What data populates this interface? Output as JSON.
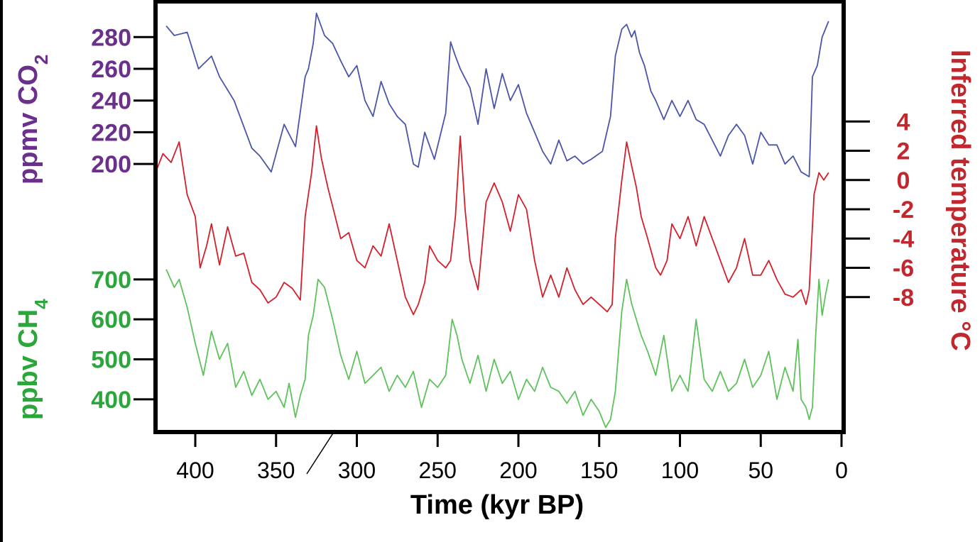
{
  "chart_data": {
    "type": "line",
    "xlabel": "Time (kyr BP)",
    "xlim": [
      425,
      0
    ],
    "x_ticks": [
      "400",
      "350",
      "300",
      "250",
      "200",
      "150",
      "100",
      "50",
      "0"
    ],
    "axes": {
      "co2": {
        "label_main": "ppmv CO",
        "label_sub": "2",
        "ticks": [
          "280",
          "260",
          "240",
          "220",
          "200"
        ],
        "ylim": [
          188,
          298
        ]
      },
      "temperature": {
        "label": "Inferred temperature °C",
        "ticks": [
          "4",
          "2",
          "0",
          "-2",
          "-4",
          "-6",
          "-8"
        ],
        "ylim": [
          -10,
          6
        ]
      },
      "ch4": {
        "label_main": "ppbv CH",
        "label_sub": "4",
        "ticks": [
          "700",
          "600",
          "500",
          "400"
        ],
        "ylim": [
          320,
          760
        ]
      }
    },
    "series": [
      {
        "axis": "co2",
        "color": "#4a55a8",
        "x": [
          418,
          413,
          405,
          398,
          390,
          385,
          376,
          365,
          360,
          353,
          345,
          338,
          332,
          330,
          327,
          325,
          320,
          315,
          310,
          305,
          300,
          295,
          290,
          285,
          280,
          275,
          270,
          265,
          262,
          258,
          252,
          245,
          242,
          239,
          236,
          230,
          225,
          220,
          215,
          210,
          205,
          200,
          195,
          190,
          185,
          180,
          175,
          170,
          165,
          160,
          155,
          148,
          143,
          140,
          136,
          133,
          130,
          128,
          125,
          122,
          118,
          115,
          110,
          105,
          100,
          95,
          90,
          85,
          80,
          75,
          70,
          65,
          60,
          55,
          50,
          45,
          40,
          35,
          30,
          25,
          20,
          18,
          15,
          12,
          8
        ],
        "y": [
          287,
          281,
          283,
          260,
          268,
          255,
          240,
          210,
          205,
          195,
          225,
          211,
          255,
          260,
          276,
          295,
          281,
          276,
          265,
          255,
          262,
          240,
          230,
          252,
          238,
          230,
          225,
          200,
          198,
          220,
          203,
          232,
          277,
          268,
          260,
          248,
          225,
          260,
          235,
          257,
          240,
          250,
          232,
          220,
          208,
          200,
          215,
          202,
          205,
          200,
          203,
          208,
          230,
          268,
          285,
          288,
          280,
          284,
          270,
          262,
          246,
          240,
          228,
          240,
          230,
          240,
          228,
          225,
          215,
          205,
          218,
          225,
          218,
          200,
          220,
          212,
          212,
          200,
          205,
          195,
          192,
          255,
          262,
          280,
          290
        ]
      },
      {
        "axis": "temperature",
        "color": "#d41f2a",
        "x": [
          425,
          420,
          415,
          410,
          405,
          400,
          397,
          393,
          390,
          385,
          380,
          375,
          370,
          365,
          360,
          355,
          350,
          345,
          340,
          335,
          332,
          328,
          325,
          322,
          318,
          315,
          310,
          305,
          300,
          295,
          290,
          285,
          280,
          275,
          270,
          265,
          262,
          258,
          255,
          250,
          245,
          242,
          239,
          236,
          233,
          230,
          225,
          220,
          215,
          210,
          205,
          200,
          195,
          190,
          185,
          180,
          175,
          170,
          165,
          160,
          155,
          150,
          145,
          142,
          140,
          136,
          133,
          130,
          127,
          124,
          120,
          115,
          112,
          108,
          105,
          100,
          95,
          90,
          85,
          80,
          75,
          70,
          65,
          60,
          55,
          50,
          45,
          40,
          35,
          30,
          25,
          22,
          20,
          17,
          14,
          11,
          8
        ],
        "y": [
          0.4,
          1.8,
          1.2,
          2.6,
          -1.0,
          -2.5,
          -6.0,
          -4.5,
          -3.0,
          -5.8,
          -3.2,
          -5.2,
          -5.0,
          -7.0,
          -7.5,
          -8.4,
          -8.0,
          -7.0,
          -7.4,
          -8.2,
          -2.5,
          0.5,
          3.7,
          1.5,
          -0.5,
          -1.8,
          -4.0,
          -3.6,
          -5.5,
          -6.0,
          -4.5,
          -5.2,
          -3.0,
          -5.5,
          -8.0,
          -9.2,
          -8.5,
          -7.0,
          -4.5,
          -5.5,
          -6.0,
          -5.5,
          -2.5,
          3.0,
          -2.0,
          -5.5,
          -7.5,
          -1.5,
          -0.2,
          -1.5,
          -3.5,
          -1.0,
          -2.0,
          -5.5,
          -8.0,
          -6.5,
          -8.0,
          -6.0,
          -7.5,
          -8.5,
          -8.0,
          -8.5,
          -9.0,
          -8.5,
          -4.0,
          0.0,
          2.6,
          1.0,
          -0.5,
          -2.5,
          -4.0,
          -6.0,
          -6.5,
          -5.5,
          -3.0,
          -4.0,
          -2.5,
          -4.5,
          -2.5,
          -4.0,
          -5.5,
          -7.0,
          -6.0,
          -4.0,
          -6.5,
          -6.5,
          -5.5,
          -6.8,
          -7.8,
          -8.0,
          -7.5,
          -8.5,
          -7.5,
          -1.0,
          0.5,
          0.0,
          0.5
        ]
      },
      {
        "axis": "ch4",
        "color": "#5dc25a",
        "x": [
          418,
          413,
          410,
          405,
          400,
          395,
          390,
          385,
          380,
          375,
          370,
          365,
          360,
          355,
          350,
          345,
          342,
          338,
          335,
          332,
          330,
          327,
          324,
          320,
          315,
          310,
          305,
          300,
          295,
          290,
          285,
          280,
          275,
          270,
          265,
          260,
          255,
          250,
          245,
          241,
          238,
          235,
          230,
          225,
          220,
          215,
          210,
          205,
          200,
          195,
          190,
          185,
          180,
          175,
          170,
          165,
          160,
          155,
          150,
          146,
          143,
          140,
          136,
          133,
          130,
          127,
          124,
          120,
          115,
          110,
          105,
          100,
          95,
          90,
          85,
          80,
          75,
          70,
          65,
          60,
          55,
          50,
          45,
          40,
          35,
          30,
          27,
          25,
          22,
          20,
          18,
          16,
          14,
          12,
          10,
          8
        ],
        "y": [
          725,
          680,
          700,
          630,
          540,
          460,
          570,
          500,
          540,
          430,
          470,
          410,
          450,
          400,
          420,
          380,
          440,
          355,
          410,
          450,
          560,
          610,
          700,
          680,
          600,
          510,
          450,
          520,
          440,
          460,
          480,
          420,
          460,
          430,
          470,
          380,
          450,
          430,
          460,
          600,
          560,
          500,
          440,
          510,
          420,
          500,
          440,
          470,
          400,
          450,
          420,
          480,
          430,
          420,
          390,
          420,
          360,
          400,
          370,
          330,
          350,
          420,
          620,
          700,
          640,
          600,
          560,
          520,
          460,
          560,
          420,
          460,
          420,
          600,
          450,
          420,
          470,
          420,
          440,
          500,
          430,
          460,
          520,
          400,
          480,
          420,
          550,
          400,
          380,
          350,
          380,
          560,
          700,
          610,
          660,
          700
        ]
      }
    ]
  }
}
